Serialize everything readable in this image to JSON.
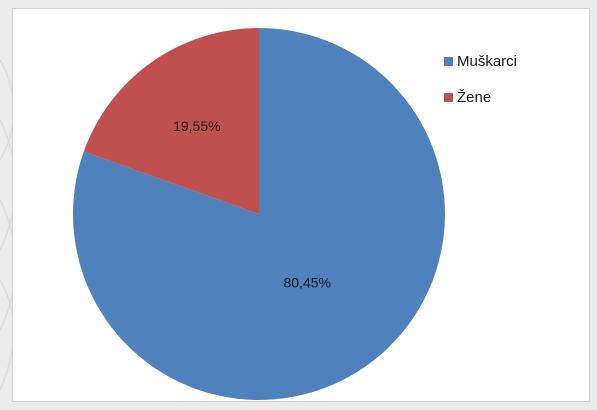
{
  "chart_data": {
    "type": "pie",
    "slices": [
      {
        "label": "Muškarci",
        "value": 80.45,
        "display": "80,45%",
        "color": "#4f81bd"
      },
      {
        "label": "Žene",
        "value": 19.55,
        "display": "19,55%",
        "color": "#c0504d"
      }
    ],
    "legend": {
      "position": "right",
      "items": [
        "Muškarci",
        "Žene"
      ]
    },
    "start_angle_deg": 0
  },
  "colors": {
    "background": "#ececec",
    "plot_area": "#ffffff"
  }
}
